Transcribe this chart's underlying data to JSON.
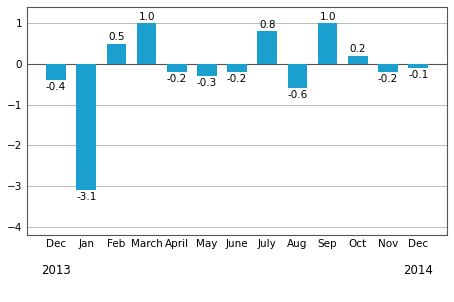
{
  "categories": [
    "Dec",
    "Jan",
    "Feb",
    "March",
    "April",
    "May",
    "June",
    "July",
    "Aug",
    "Sep",
    "Oct",
    "Nov",
    "Dec"
  ],
  "values": [
    -0.4,
    -3.1,
    0.5,
    1.0,
    -0.2,
    -0.3,
    -0.2,
    0.8,
    -0.6,
    1.0,
    0.2,
    -0.2,
    -0.1
  ],
  "bar_color": "#1a9fce",
  "ylim": [
    -4.2,
    1.4
  ],
  "yticks": [
    -4,
    -3,
    -2,
    -1,
    0,
    1
  ],
  "background_color": "#ffffff",
  "grid_color": "#b0b0b0",
  "tick_fontsize": 7.5,
  "bar_label_fontsize": 7.5,
  "year_fontsize": 8.5,
  "bar_width": 0.65
}
